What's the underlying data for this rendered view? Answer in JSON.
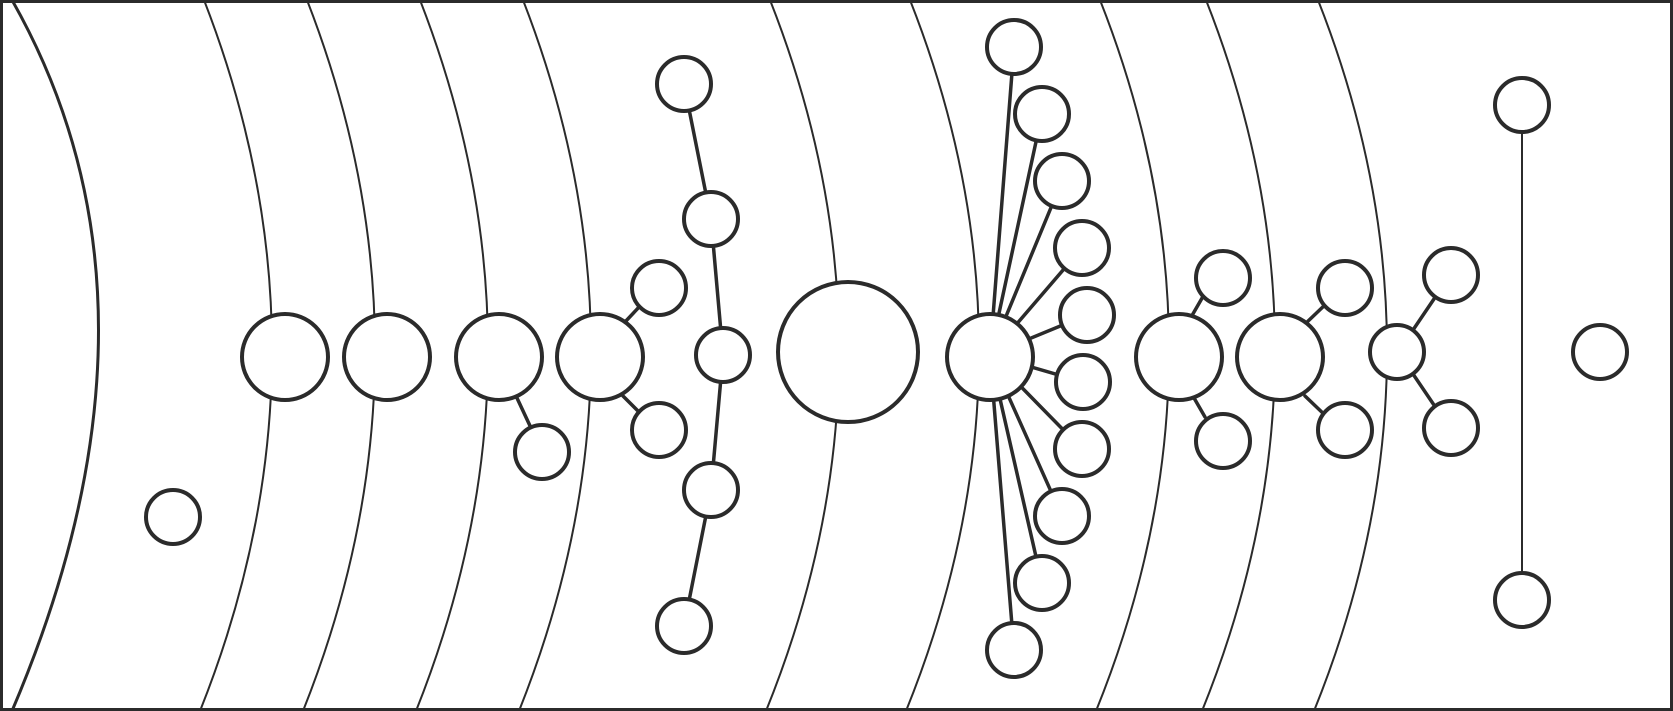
{
  "diagram": {
    "kind": "solar-system-schematic",
    "colors": {
      "stroke": "#2b2b2b",
      "fill": "#ffffff",
      "background": "#ffffff"
    },
    "sun": {
      "shown_as": "arc"
    },
    "bodies": [
      {
        "id": "dwarf-inner",
        "moons": 0,
        "on_orbit": false
      },
      {
        "id": "planet-1",
        "moons": 0,
        "on_orbit": true
      },
      {
        "id": "planet-2",
        "moons": 0,
        "on_orbit": true
      },
      {
        "id": "planet-3",
        "moons": 1,
        "on_orbit": true
      },
      {
        "id": "planet-4",
        "moons": 2,
        "on_orbit": true
      },
      {
        "id": "chain-group",
        "members": 5,
        "on_orbit": true
      },
      {
        "id": "planet-giant-1",
        "moons": 0,
        "on_orbit": true
      },
      {
        "id": "planet-giant-2",
        "moons": 10,
        "on_orbit": true
      },
      {
        "id": "planet-7",
        "moons": 2,
        "on_orbit": true
      },
      {
        "id": "planet-8",
        "moons": 2,
        "on_orbit": true
      },
      {
        "id": "planet-9",
        "moons": 2,
        "on_orbit": true
      },
      {
        "id": "pair-group",
        "members": 2,
        "on_orbit": false
      },
      {
        "id": "dwarf-outer",
        "moons": 0,
        "on_orbit": false
      }
    ]
  }
}
